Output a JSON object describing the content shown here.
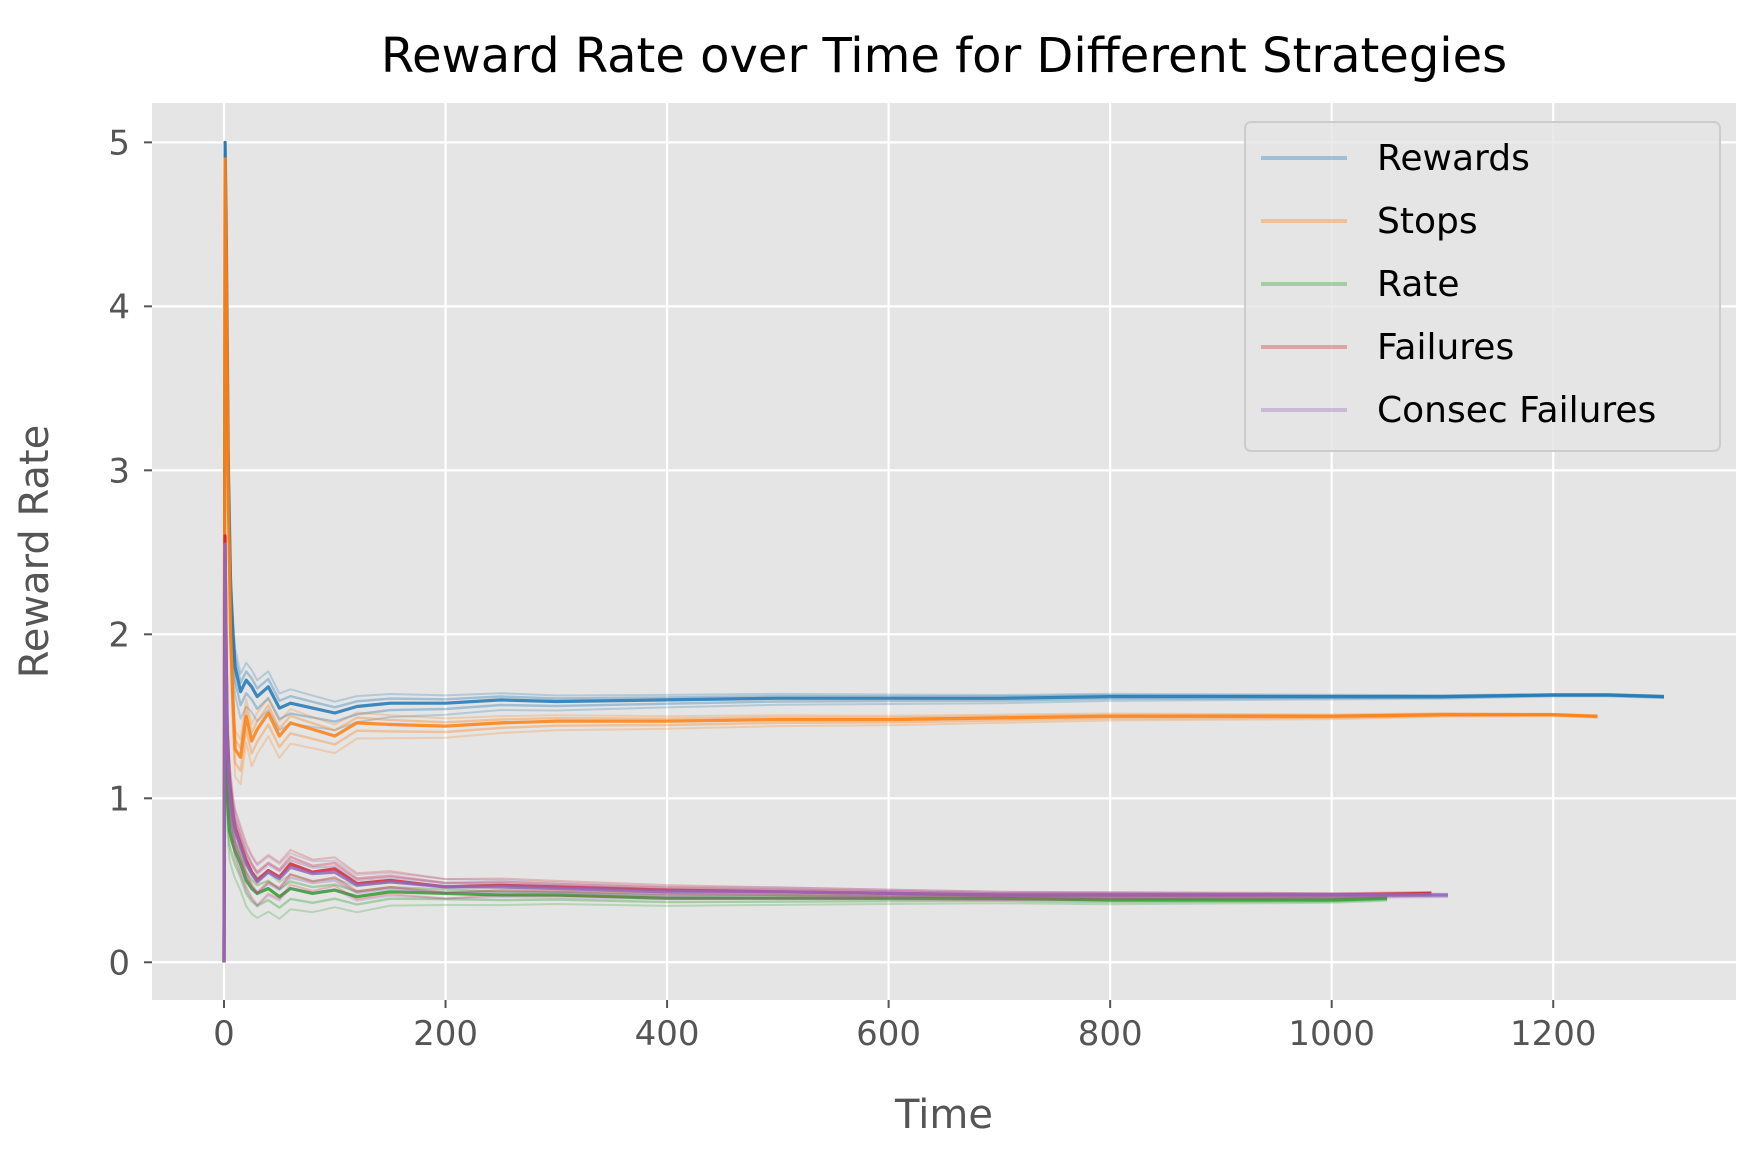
{
  "chart_data": {
    "type": "line",
    "title": "Reward Rate over Time for Different Strategies",
    "xlabel": "Time",
    "ylabel": "Reward Rate",
    "xlim": [
      -65,
      1365
    ],
    "ylim": [
      -0.23,
      5.24
    ],
    "xticks": [
      0,
      200,
      400,
      600,
      800,
      1000,
      1200
    ],
    "yticks": [
      0,
      1,
      2,
      3,
      4,
      5
    ],
    "grid": true,
    "legend_position": "top-right",
    "colors": {
      "background": "#e5e5e5",
      "grid": "#ffffff",
      "tick_label": "#555555",
      "title": "#000000"
    },
    "legend": [
      {
        "label": "Rewards",
        "color": "#1f77b4"
      },
      {
        "label": "Stops",
        "color": "#ff7f0e"
      },
      {
        "label": "Rate",
        "color": "#2ca02c"
      },
      {
        "label": "Failures",
        "color": "#d62728"
      },
      {
        "label": "Consec Failures",
        "color": "#9467bd"
      }
    ],
    "series": [
      {
        "name": "Rewards",
        "color": "#1f77b4",
        "x": [
          0,
          1,
          2,
          4,
          6,
          8,
          10,
          15,
          20,
          25,
          30,
          40,
          50,
          60,
          80,
          100,
          120,
          150,
          200,
          250,
          300,
          400,
          500,
          600,
          700,
          800,
          900,
          1000,
          1100,
          1200,
          1250,
          1300
        ],
        "y": [
          0,
          5.0,
          4.5,
          3.0,
          2.3,
          2.0,
          1.8,
          1.65,
          1.72,
          1.68,
          1.62,
          1.68,
          1.55,
          1.58,
          1.55,
          1.52,
          1.56,
          1.58,
          1.58,
          1.6,
          1.59,
          1.6,
          1.61,
          1.61,
          1.61,
          1.62,
          1.62,
          1.62,
          1.62,
          1.63,
          1.63,
          1.62
        ]
      },
      {
        "name": "Stops",
        "color": "#ff7f0e",
        "x": [
          0,
          1,
          2,
          4,
          6,
          8,
          10,
          15,
          20,
          25,
          30,
          40,
          50,
          60,
          80,
          100,
          120,
          150,
          200,
          250,
          300,
          400,
          500,
          600,
          700,
          800,
          900,
          1000,
          1100,
          1200,
          1240
        ],
        "y": [
          0,
          4.9,
          4.3,
          2.8,
          2.0,
          1.6,
          1.3,
          1.25,
          1.5,
          1.35,
          1.42,
          1.52,
          1.38,
          1.46,
          1.42,
          1.38,
          1.46,
          1.45,
          1.44,
          1.46,
          1.47,
          1.47,
          1.48,
          1.48,
          1.49,
          1.5,
          1.5,
          1.5,
          1.51,
          1.51,
          1.5
        ]
      },
      {
        "name": "Rate",
        "color": "#2ca02c",
        "x": [
          0,
          1,
          2,
          3,
          5,
          8,
          10,
          15,
          20,
          25,
          30,
          40,
          50,
          60,
          80,
          100,
          120,
          150,
          200,
          250,
          300,
          400,
          500,
          600,
          700,
          800,
          900,
          1000,
          1050
        ],
        "y": [
          0,
          2.4,
          1.6,
          1.0,
          0.8,
          0.72,
          0.68,
          0.6,
          0.5,
          0.45,
          0.42,
          0.45,
          0.4,
          0.45,
          0.42,
          0.44,
          0.4,
          0.43,
          0.42,
          0.41,
          0.41,
          0.39,
          0.39,
          0.39,
          0.39,
          0.38,
          0.38,
          0.38,
          0.39
        ]
      },
      {
        "name": "Failures",
        "color": "#d62728",
        "x": [
          0,
          1,
          2,
          3,
          5,
          8,
          10,
          15,
          20,
          25,
          30,
          40,
          50,
          60,
          80,
          100,
          120,
          150,
          200,
          250,
          300,
          400,
          500,
          600,
          700,
          800,
          900,
          1000,
          1090
        ],
        "y": [
          0,
          2.6,
          1.9,
          1.4,
          1.1,
          0.9,
          0.82,
          0.72,
          0.62,
          0.55,
          0.5,
          0.56,
          0.52,
          0.6,
          0.55,
          0.57,
          0.48,
          0.5,
          0.46,
          0.47,
          0.46,
          0.44,
          0.43,
          0.42,
          0.41,
          0.41,
          0.41,
          0.41,
          0.42
        ]
      },
      {
        "name": "Consec Failures",
        "color": "#9467bd",
        "x": [
          0,
          1,
          2,
          3,
          5,
          8,
          10,
          15,
          20,
          25,
          30,
          40,
          50,
          60,
          80,
          100,
          120,
          150,
          200,
          250,
          300,
          400,
          500,
          600,
          700,
          800,
          900,
          1000,
          1105
        ],
        "y": [
          0,
          2.55,
          1.85,
          1.35,
          1.05,
          0.88,
          0.8,
          0.7,
          0.6,
          0.54,
          0.49,
          0.55,
          0.51,
          0.58,
          0.54,
          0.55,
          0.47,
          0.49,
          0.46,
          0.46,
          0.45,
          0.43,
          0.43,
          0.42,
          0.41,
          0.41,
          0.41,
          0.41,
          0.41
        ]
      }
    ]
  }
}
